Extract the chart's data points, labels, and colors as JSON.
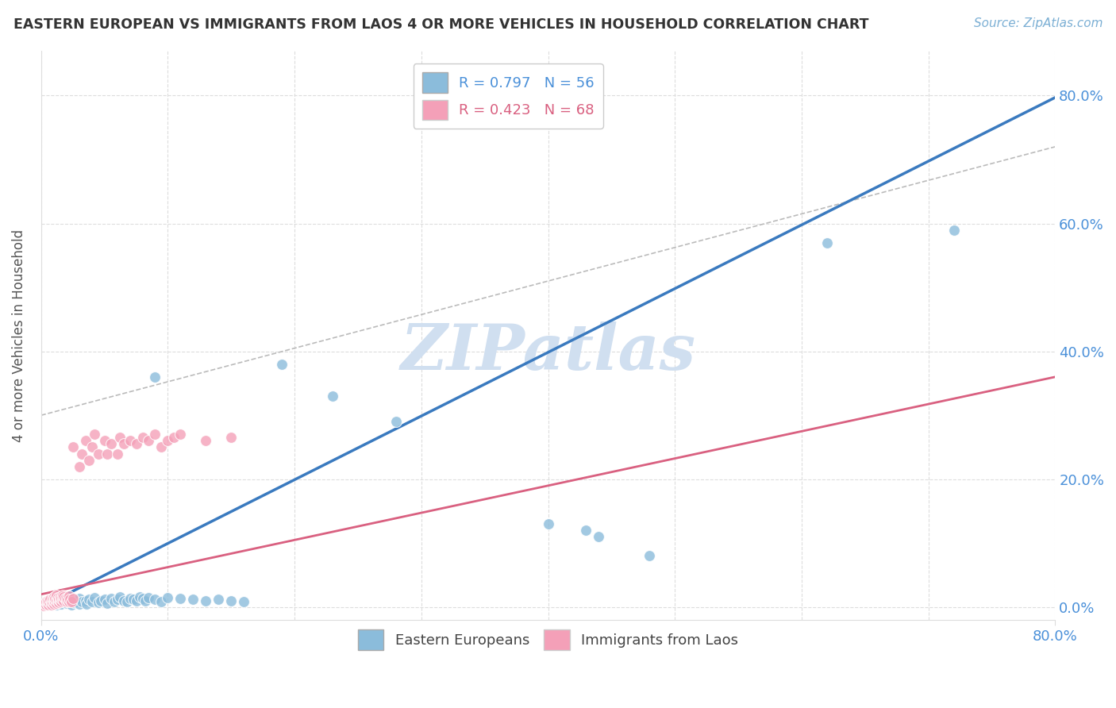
{
  "title": "EASTERN EUROPEAN VS IMMIGRANTS FROM LAOS 4 OR MORE VEHICLES IN HOUSEHOLD CORRELATION CHART",
  "source": "Source: ZipAtlas.com",
  "ylabel": "4 or more Vehicles in Household",
  "ytick_labels": [
    "0.0%",
    "20.0%",
    "40.0%",
    "60.0%",
    "80.0%"
  ],
  "ytick_values": [
    0,
    0.2,
    0.4,
    0.6,
    0.8
  ],
  "xtick_values": [
    0,
    0.1,
    0.2,
    0.3,
    0.4,
    0.5,
    0.6,
    0.7,
    0.8
  ],
  "xlim": [
    0,
    0.8
  ],
  "ylim": [
    -0.02,
    0.87
  ],
  "legend_top": [
    {
      "label": "R = 0.797   N = 56",
      "color": "#a8c4e0"
    },
    {
      "label": "R = 0.423   N = 68",
      "color": "#f4a7b9"
    }
  ],
  "blue_scatter": [
    [
      0.005,
      0.005
    ],
    [
      0.008,
      0.003
    ],
    [
      0.01,
      0.008
    ],
    [
      0.012,
      0.004
    ],
    [
      0.015,
      0.01
    ],
    [
      0.016,
      0.005
    ],
    [
      0.018,
      0.008
    ],
    [
      0.02,
      0.006
    ],
    [
      0.022,
      0.01
    ],
    [
      0.024,
      0.004
    ],
    [
      0.025,
      0.012
    ],
    [
      0.026,
      0.007
    ],
    [
      0.028,
      0.009
    ],
    [
      0.03,
      0.005
    ],
    [
      0.03,
      0.014
    ],
    [
      0.032,
      0.008
    ],
    [
      0.035,
      0.01
    ],
    [
      0.036,
      0.005
    ],
    [
      0.038,
      0.012
    ],
    [
      0.04,
      0.008
    ],
    [
      0.042,
      0.015
    ],
    [
      0.045,
      0.007
    ],
    [
      0.047,
      0.01
    ],
    [
      0.05,
      0.012
    ],
    [
      0.052,
      0.006
    ],
    [
      0.055,
      0.014
    ],
    [
      0.058,
      0.009
    ],
    [
      0.06,
      0.012
    ],
    [
      0.062,
      0.016
    ],
    [
      0.065,
      0.01
    ],
    [
      0.068,
      0.008
    ],
    [
      0.07,
      0.014
    ],
    [
      0.073,
      0.012
    ],
    [
      0.075,
      0.01
    ],
    [
      0.078,
      0.016
    ],
    [
      0.08,
      0.014
    ],
    [
      0.082,
      0.01
    ],
    [
      0.085,
      0.015
    ],
    [
      0.09,
      0.012
    ],
    [
      0.095,
      0.008
    ],
    [
      0.1,
      0.015
    ],
    [
      0.11,
      0.013
    ],
    [
      0.12,
      0.012
    ],
    [
      0.13,
      0.01
    ],
    [
      0.14,
      0.012
    ],
    [
      0.15,
      0.01
    ],
    [
      0.16,
      0.008
    ],
    [
      0.09,
      0.36
    ],
    [
      0.19,
      0.38
    ],
    [
      0.23,
      0.33
    ],
    [
      0.28,
      0.29
    ],
    [
      0.4,
      0.13
    ],
    [
      0.43,
      0.12
    ],
    [
      0.44,
      0.11
    ],
    [
      0.48,
      0.08
    ],
    [
      0.62,
      0.57
    ],
    [
      0.72,
      0.59
    ]
  ],
  "pink_scatter": [
    [
      0.002,
      0.002
    ],
    [
      0.003,
      0.005
    ],
    [
      0.004,
      0.003
    ],
    [
      0.004,
      0.008
    ],
    [
      0.005,
      0.005
    ],
    [
      0.005,
      0.01
    ],
    [
      0.006,
      0.003
    ],
    [
      0.006,
      0.008
    ],
    [
      0.007,
      0.006
    ],
    [
      0.007,
      0.012
    ],
    [
      0.008,
      0.004
    ],
    [
      0.008,
      0.009
    ],
    [
      0.009,
      0.007
    ],
    [
      0.009,
      0.014
    ],
    [
      0.01,
      0.005
    ],
    [
      0.01,
      0.01
    ],
    [
      0.01,
      0.016
    ],
    [
      0.011,
      0.008
    ],
    [
      0.011,
      0.013
    ],
    [
      0.012,
      0.006
    ],
    [
      0.012,
      0.011
    ],
    [
      0.012,
      0.018
    ],
    [
      0.013,
      0.009
    ],
    [
      0.013,
      0.015
    ],
    [
      0.014,
      0.007
    ],
    [
      0.014,
      0.012
    ],
    [
      0.015,
      0.01
    ],
    [
      0.015,
      0.016
    ],
    [
      0.016,
      0.008
    ],
    [
      0.016,
      0.014
    ],
    [
      0.017,
      0.012
    ],
    [
      0.017,
      0.018
    ],
    [
      0.018,
      0.01
    ],
    [
      0.018,
      0.016
    ],
    [
      0.019,
      0.013
    ],
    [
      0.02,
      0.008
    ],
    [
      0.02,
      0.014
    ],
    [
      0.021,
      0.011
    ],
    [
      0.022,
      0.009
    ],
    [
      0.022,
      0.017
    ],
    [
      0.023,
      0.012
    ],
    [
      0.024,
      0.008
    ],
    [
      0.025,
      0.013
    ],
    [
      0.025,
      0.25
    ],
    [
      0.03,
      0.22
    ],
    [
      0.032,
      0.24
    ],
    [
      0.035,
      0.26
    ],
    [
      0.038,
      0.23
    ],
    [
      0.04,
      0.25
    ],
    [
      0.042,
      0.27
    ],
    [
      0.045,
      0.24
    ],
    [
      0.05,
      0.26
    ],
    [
      0.052,
      0.24
    ],
    [
      0.055,
      0.255
    ],
    [
      0.06,
      0.24
    ],
    [
      0.062,
      0.265
    ],
    [
      0.065,
      0.255
    ],
    [
      0.07,
      0.26
    ],
    [
      0.075,
      0.255
    ],
    [
      0.08,
      0.265
    ],
    [
      0.085,
      0.26
    ],
    [
      0.09,
      0.27
    ],
    [
      0.095,
      0.25
    ],
    [
      0.1,
      0.26
    ],
    [
      0.105,
      0.265
    ],
    [
      0.11,
      0.27
    ],
    [
      0.13,
      0.26
    ],
    [
      0.15,
      0.265
    ]
  ],
  "blue_line": [
    [
      0.0,
      0.0
    ],
    [
      0.8,
      0.797
    ]
  ],
  "pink_line": [
    [
      0.0,
      0.02
    ],
    [
      0.8,
      0.36
    ]
  ],
  "grey_dashed_line": [
    [
      0.0,
      0.3
    ],
    [
      0.8,
      0.72
    ]
  ],
  "blue_color": "#8bbcdb",
  "blue_line_color": "#3a7abf",
  "pink_color": "#f4a0b8",
  "pink_line_color": "#d96080",
  "grey_line_color": "#bbbbbb",
  "watermark": "ZIPatlas",
  "watermark_color": "#d0dff0",
  "scatter_size": 100,
  "background_color": "#ffffff",
  "grid_color": "#dddddd",
  "grid_style": "--"
}
